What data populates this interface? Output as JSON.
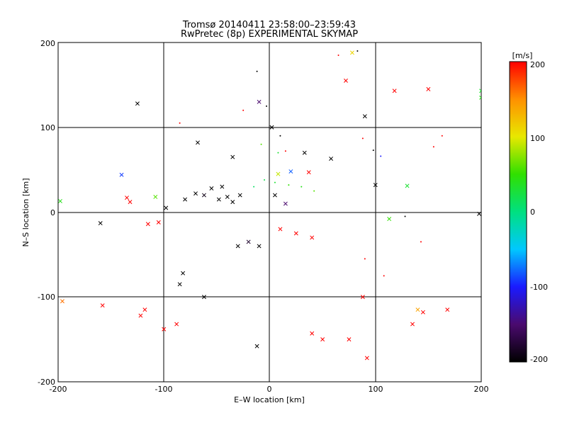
{
  "chart_data": {
    "type": "scatter",
    "title": "Tromsø 20140411 23:58:00–23:59:43",
    "subtitle": "RwPretec (8p) EXPERIMENTAL SKYMAP",
    "xlabel": "E–W location [km]",
    "ylabel": "N–S location [km]",
    "xlim": [
      -200,
      200
    ],
    "ylim": [
      -200,
      200
    ],
    "xticks": [
      "-200",
      "-100",
      "0",
      "100",
      "200"
    ],
    "yticks": [
      "-200",
      "-100",
      "0",
      "100",
      "200"
    ],
    "grid": true,
    "colorbar": {
      "unit": "[m/s]",
      "range": [
        -200,
        200
      ],
      "ticks": [
        "200",
        "100",
        "0",
        "-100",
        "-200"
      ],
      "colormap": [
        "#000000",
        "#4a0a6e",
        "#1a1aff",
        "#00c8ff",
        "#00e080",
        "#30e000",
        "#e8e800",
        "#ff9000",
        "#ff0000"
      ]
    },
    "series": [
      {
        "marker": "x",
        "points": [
          {
            "x": -125,
            "y": 128,
            "v": -200
          },
          {
            "x": -68,
            "y": 82,
            "v": -200
          },
          {
            "x": -35,
            "y": 65,
            "v": -200
          },
          {
            "x": -10,
            "y": 130,
            "v": -150
          },
          {
            "x": 2,
            "y": 100,
            "v": -200
          },
          {
            "x": 33,
            "y": 70,
            "v": -200
          },
          {
            "x": 58,
            "y": 63,
            "v": -200
          },
          {
            "x": 90,
            "y": 113,
            "v": -200
          },
          {
            "x": 100,
            "y": 32,
            "v": -200
          },
          {
            "x": 72,
            "y": 155,
            "v": 200
          },
          {
            "x": 78,
            "y": 188,
            "v": 110
          },
          {
            "x": 118,
            "y": 143,
            "v": 200
          },
          {
            "x": 150,
            "y": 145,
            "v": 200
          },
          {
            "x": 200,
            "y": 143,
            "v": 30
          },
          {
            "x": 200,
            "y": 135,
            "v": 40
          },
          {
            "x": -140,
            "y": 44,
            "v": -90
          },
          {
            "x": -108,
            "y": 18,
            "v": 60
          },
          {
            "x": -135,
            "y": 17,
            "v": 200
          },
          {
            "x": -132,
            "y": 12,
            "v": 200
          },
          {
            "x": -198,
            "y": 13,
            "v": 40
          },
          {
            "x": -160,
            "y": -13,
            "v": -200
          },
          {
            "x": -115,
            "y": -14,
            "v": 200
          },
          {
            "x": -98,
            "y": 5,
            "v": -200
          },
          {
            "x": 20,
            "y": 48,
            "v": -80
          },
          {
            "x": 37,
            "y": 47,
            "v": 200
          },
          {
            "x": 8,
            "y": 45,
            "v": 90
          },
          {
            "x": 130,
            "y": 31,
            "v": 30
          },
          {
            "x": 113,
            "y": -8,
            "v": 50
          },
          {
            "x": 198,
            "y": -2,
            "v": -200
          },
          {
            "x": -196,
            "y": -105,
            "v": 160
          },
          {
            "x": -158,
            "y": -110,
            "v": 200
          },
          {
            "x": -122,
            "y": -122,
            "v": 200
          },
          {
            "x": -118,
            "y": -115,
            "v": 200
          },
          {
            "x": -100,
            "y": -138,
            "v": 200
          },
          {
            "x": -88,
            "y": -132,
            "v": 200
          },
          {
            "x": -62,
            "y": -100,
            "v": -200
          },
          {
            "x": -82,
            "y": -72,
            "v": -200
          },
          {
            "x": -85,
            "y": -85,
            "v": -200
          },
          {
            "x": -12,
            "y": -158,
            "v": -200
          },
          {
            "x": 40,
            "y": -143,
            "v": 200
          },
          {
            "x": 50,
            "y": -150,
            "v": 200
          },
          {
            "x": 75,
            "y": -150,
            "v": 200
          },
          {
            "x": 92,
            "y": -172,
            "v": 200
          },
          {
            "x": 135,
            "y": -132,
            "v": 200
          },
          {
            "x": 145,
            "y": -118,
            "v": 200
          },
          {
            "x": 140,
            "y": -115,
            "v": 140
          },
          {
            "x": 168,
            "y": -115,
            "v": 200
          },
          {
            "x": 88,
            "y": -100,
            "v": 200
          },
          {
            "x": -105,
            "y": -12,
            "v": 200
          },
          {
            "x": -80,
            "y": 15,
            "v": -200
          },
          {
            "x": -70,
            "y": 22,
            "v": -200
          },
          {
            "x": -62,
            "y": 20,
            "v": -190
          },
          {
            "x": -48,
            "y": 15,
            "v": -200
          },
          {
            "x": -40,
            "y": 18,
            "v": -200
          },
          {
            "x": -35,
            "y": 12,
            "v": -200
          },
          {
            "x": -28,
            "y": 20,
            "v": -200
          },
          {
            "x": -55,
            "y": 28,
            "v": -200
          },
          {
            "x": -45,
            "y": 30,
            "v": -200
          },
          {
            "x": 5,
            "y": 20,
            "v": -200
          },
          {
            "x": 15,
            "y": 10,
            "v": -150
          },
          {
            "x": -20,
            "y": -35,
            "v": -180
          },
          {
            "x": -30,
            "y": -40,
            "v": -200
          },
          {
            "x": -10,
            "y": -40,
            "v": -200
          },
          {
            "x": 10,
            "y": -20,
            "v": 200
          },
          {
            "x": 25,
            "y": -25,
            "v": 200
          },
          {
            "x": 40,
            "y": -30,
            "v": 200
          }
        ]
      },
      {
        "marker": "dot",
        "points": [
          {
            "x": -12,
            "y": 166,
            "v": -200
          },
          {
            "x": -3,
            "y": 125,
            "v": -200
          },
          {
            "x": -25,
            "y": 120,
            "v": 200
          },
          {
            "x": -85,
            "y": 105,
            "v": 200
          },
          {
            "x": 10,
            "y": 90,
            "v": -200
          },
          {
            "x": 88,
            "y": 87,
            "v": 200
          },
          {
            "x": 98,
            "y": 73,
            "v": -200
          },
          {
            "x": 105,
            "y": 66,
            "v": -100
          },
          {
            "x": 163,
            "y": 90,
            "v": 200
          },
          {
            "x": 155,
            "y": 77,
            "v": 200
          },
          {
            "x": 128,
            "y": -5,
            "v": -200
          },
          {
            "x": 143,
            "y": -35,
            "v": 200
          },
          {
            "x": 108,
            "y": -75,
            "v": 200
          },
          {
            "x": 90,
            "y": -55,
            "v": 200
          },
          {
            "x": 65,
            "y": 185,
            "v": 200
          },
          {
            "x": 83,
            "y": 190,
            "v": -200
          },
          {
            "x": 42,
            "y": 25,
            "v": 60
          },
          {
            "x": 30,
            "y": 30,
            "v": 40
          },
          {
            "x": 18,
            "y": 32,
            "v": 50
          },
          {
            "x": 5,
            "y": 35,
            "v": 30
          },
          {
            "x": -5,
            "y": 38,
            "v": 20
          },
          {
            "x": -15,
            "y": 30,
            "v": 10
          },
          {
            "x": 8,
            "y": 70,
            "v": 30
          },
          {
            "x": 15,
            "y": 72,
            "v": 200
          },
          {
            "x": -8,
            "y": 80,
            "v": 60
          }
        ]
      }
    ]
  }
}
